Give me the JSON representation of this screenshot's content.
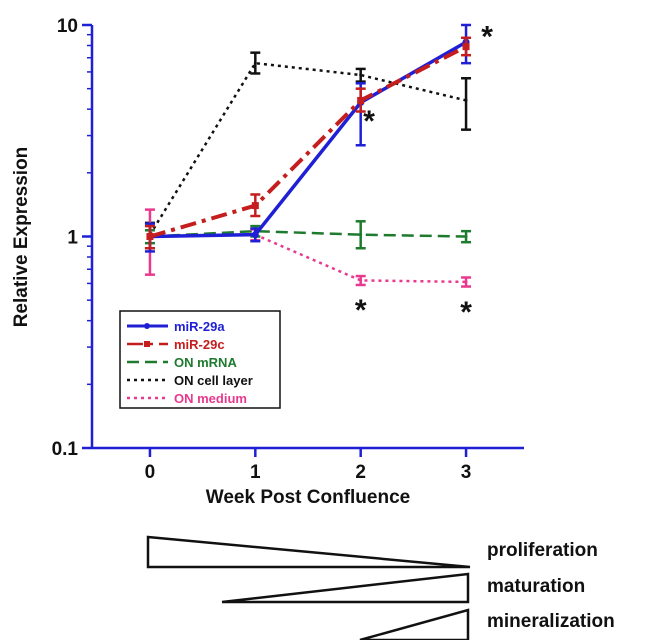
{
  "chart_data": {
    "type": "line",
    "title": "",
    "xlabel": "Week Post Confluence",
    "ylabel": "Relative Expression",
    "x": [
      0,
      1,
      2,
      3
    ],
    "x_ticks": [
      "0",
      "1",
      "2",
      "3"
    ],
    "xlim": [
      -0.55,
      3.55
    ],
    "yscale": "log",
    "ylim": [
      0.1,
      10
    ],
    "y_ticks": [
      "0.1",
      "1",
      "10"
    ],
    "grid": false,
    "legend_position": "lower-left",
    "series": [
      {
        "name": "miR-29a",
        "color": "#1f1fd6",
        "dash": "solid",
        "marker": "circle",
        "values": [
          1.0,
          1.02,
          4.3,
          8.3
        ],
        "err_low": [
          0.85,
          0.95,
          2.7,
          6.6
        ],
        "err_high": [
          1.15,
          1.09,
          5.3,
          10.0
        ]
      },
      {
        "name": "miR-29c",
        "color": "#c41e1e",
        "dash": "dashdot",
        "marker": "square",
        "values": [
          1.0,
          1.4,
          4.4,
          7.9
        ],
        "err_low": [
          0.88,
          1.25,
          3.9,
          7.2
        ],
        "err_high": [
          1.12,
          1.58,
          5.0,
          8.7
        ]
      },
      {
        "name": "ON mRNA",
        "color": "#1e7a2e",
        "dash": "dashed",
        "marker": "",
        "values": [
          1.0,
          1.06,
          1.02,
          1.0
        ],
        "err_low": [
          0.93,
          1.0,
          0.88,
          0.94
        ],
        "err_high": [
          1.07,
          1.12,
          1.18,
          1.06
        ]
      },
      {
        "name": "ON cell layer",
        "color": "#111111",
        "dash": "dotted",
        "marker": "",
        "values": [
          1.02,
          6.6,
          5.8,
          4.4
        ],
        "err_low": [
          0.88,
          5.9,
          5.4,
          3.2
        ],
        "err_high": [
          1.16,
          7.4,
          6.2,
          5.6
        ]
      },
      {
        "name": "ON medium",
        "color": "#e8398f",
        "dash": "dotted",
        "marker": "",
        "values": [
          1.0,
          1.02,
          0.62,
          0.61
        ],
        "err_low": [
          0.66,
          0.96,
          0.59,
          0.58
        ],
        "err_high": [
          1.34,
          1.08,
          0.65,
          0.64
        ]
      }
    ],
    "annotations": [
      {
        "text": "*",
        "x": 3.2,
        "y": 9.0
      },
      {
        "text": "*",
        "x": 2.08,
        "y": 3.6
      },
      {
        "text": "*",
        "x": 2.0,
        "y": 0.46
      },
      {
        "text": "*",
        "x": 3.0,
        "y": 0.45
      }
    ],
    "stages": [
      "proliferation",
      "maturation",
      "mineralization"
    ]
  }
}
